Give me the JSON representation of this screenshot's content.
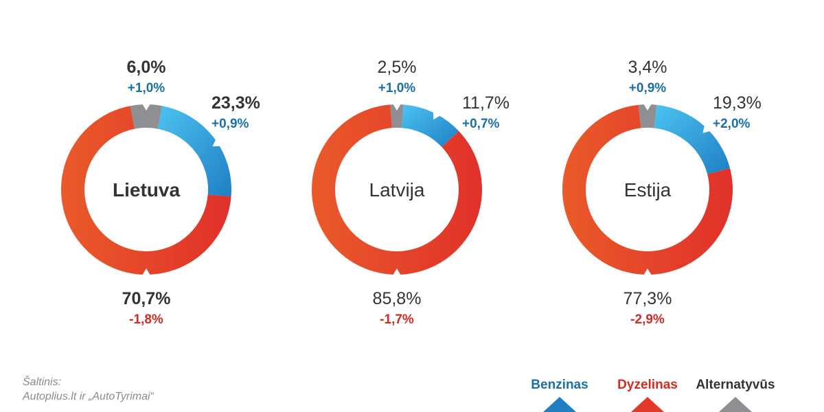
{
  "source": {
    "label": "Šaltinis:",
    "text": "Autoplius.lt ir „AutoTyrimai“"
  },
  "legend": [
    {
      "label": "Benzinas",
      "color": "#1f7fc4",
      "text_color": "#1a6fa6"
    },
    {
      "label": "Dyzelinas",
      "color": "#e23a2a",
      "text_color": "#d42a20"
    },
    {
      "label": "Alternatyvūs",
      "color": "#8f8f93",
      "text_color": "#333333"
    }
  ],
  "colors": {
    "benzinas_light": "#4cc3f0",
    "benzinas_dark": "#1f7fc4",
    "dyzelinas_light": "#ea5a2a",
    "dyzelinas_dark": "#e0312a",
    "alternatyvus": "#8f8f93",
    "positive_change": "#1a6fa6",
    "negative_change": "#d42a20",
    "value_text": "#333333"
  },
  "chart_data": [
    {
      "type": "pie",
      "title": "Lietuva",
      "bold": true,
      "series": [
        {
          "name": "Alternatyvūs",
          "value": 6.0,
          "label": "6,0%",
          "change": "+1,0%"
        },
        {
          "name": "Benzinas",
          "value": 23.3,
          "label": "23,3%",
          "change": "+0,9%"
        },
        {
          "name": "Dyzelinas",
          "value": 70.7,
          "label": "70,7%",
          "change": "-1,8%"
        }
      ]
    },
    {
      "type": "pie",
      "title": "Latvija",
      "bold": false,
      "series": [
        {
          "name": "Alternatyvūs",
          "value": 2.5,
          "label": "2,5%",
          "change": "+1,0%"
        },
        {
          "name": "Benzinas",
          "value": 11.7,
          "label": "11,7%",
          "change": "+0,7%"
        },
        {
          "name": "Dyzelinas",
          "value": 85.8,
          "label": "85,8%",
          "change": "-1,7%"
        }
      ]
    },
    {
      "type": "pie",
      "title": "Estija",
      "bold": false,
      "series": [
        {
          "name": "Alternatyvūs",
          "value": 3.4,
          "label": "3,4%",
          "change": "+0,9%"
        },
        {
          "name": "Benzinas",
          "value": 19.3,
          "label": "19,3%",
          "change": "+2,0%"
        },
        {
          "name": "Dyzelinas",
          "value": 77.3,
          "label": "77,3%",
          "change": "-2,9%"
        }
      ]
    }
  ]
}
